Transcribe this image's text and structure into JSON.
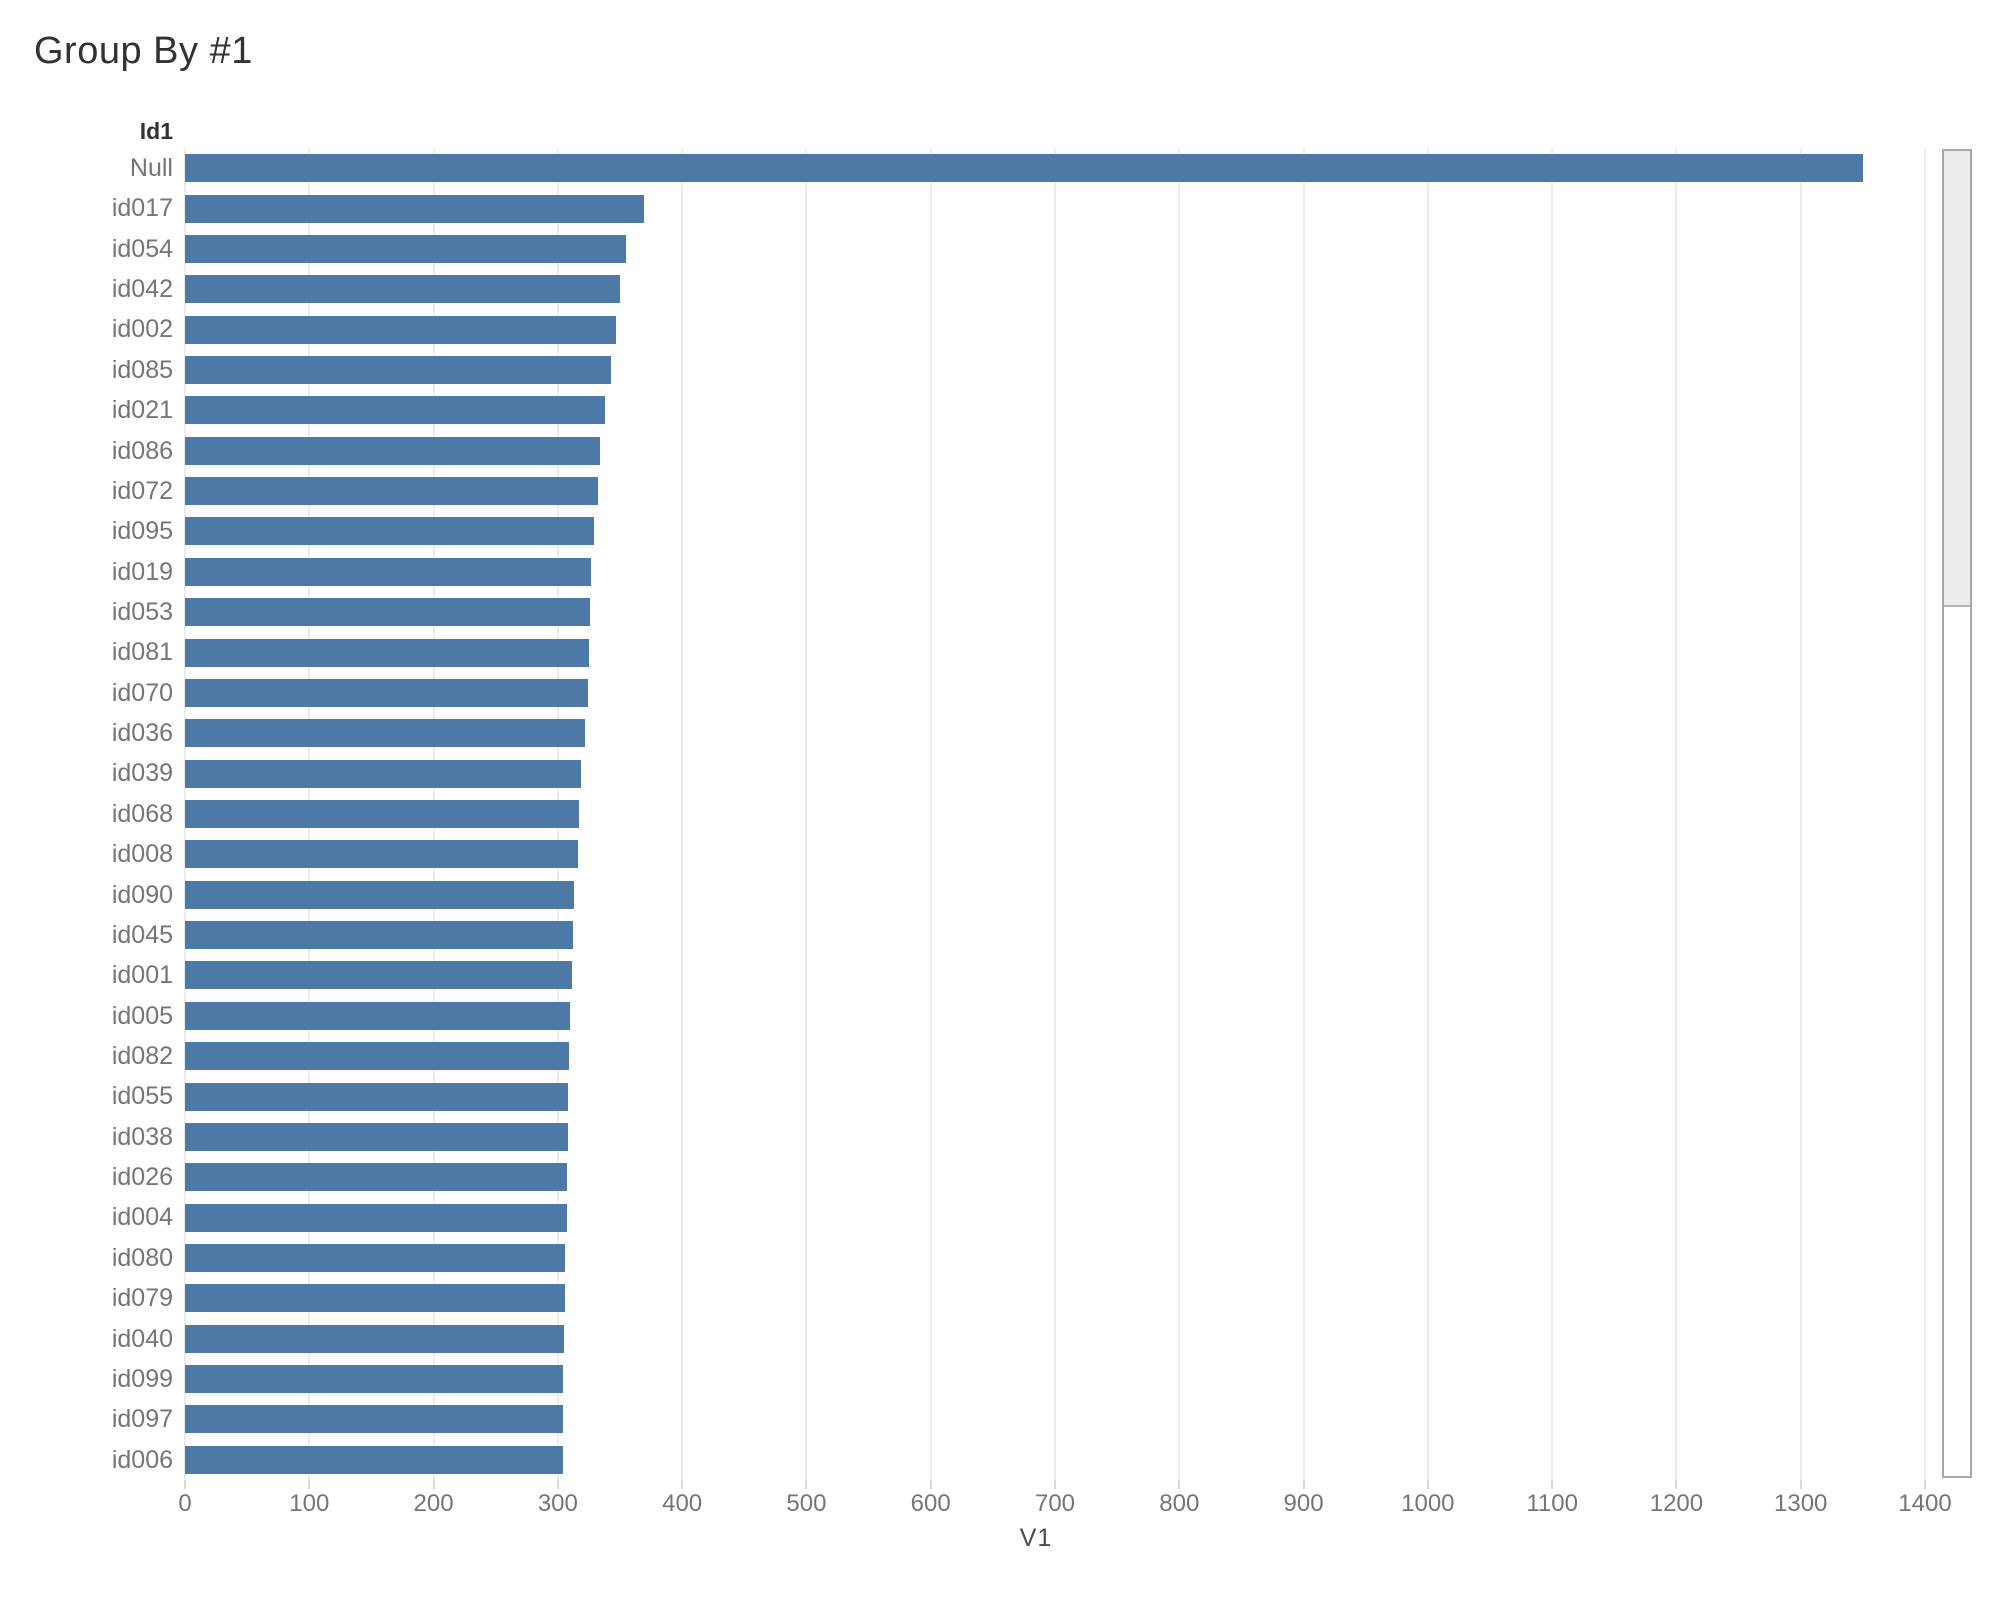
{
  "title": "Group By #1",
  "chart_data": {
    "type": "bar",
    "orientation": "horizontal",
    "column_header": "Id1",
    "categories": [
      "Null",
      "id017",
      "id054",
      "id042",
      "id002",
      "id085",
      "id021",
      "id086",
      "id072",
      "id095",
      "id019",
      "id053",
      "id081",
      "id070",
      "id036",
      "id039",
      "id068",
      "id008",
      "id090",
      "id045",
      "id001",
      "id005",
      "id082",
      "id055",
      "id038",
      "id026",
      "id004",
      "id080",
      "id079",
      "id040",
      "id099",
      "id097",
      "id006"
    ],
    "values": [
      1350,
      369,
      355,
      350,
      347,
      343,
      338,
      334,
      332,
      329,
      327,
      326,
      325,
      324,
      322,
      319,
      317,
      316,
      313,
      312,
      311,
      310,
      309,
      308,
      308,
      307,
      307,
      306,
      306,
      305,
      304,
      304,
      304
    ],
    "xlabel": "V1",
    "x_ticks": [
      0,
      100,
      200,
      300,
      400,
      500,
      600,
      700,
      800,
      900,
      1000,
      1100,
      1200,
      1300,
      1400
    ],
    "xlim": [
      0,
      1400
    ],
    "bar_color": "#4e79a7",
    "sort": "descending",
    "grid": true,
    "legend": "none"
  },
  "colors": {
    "bar": "#4e79a7",
    "title_text": "#323232",
    "label_text": "#757575",
    "gridline": "#ececec"
  },
  "icons": {
    "sort": "sort-descending-icon"
  }
}
